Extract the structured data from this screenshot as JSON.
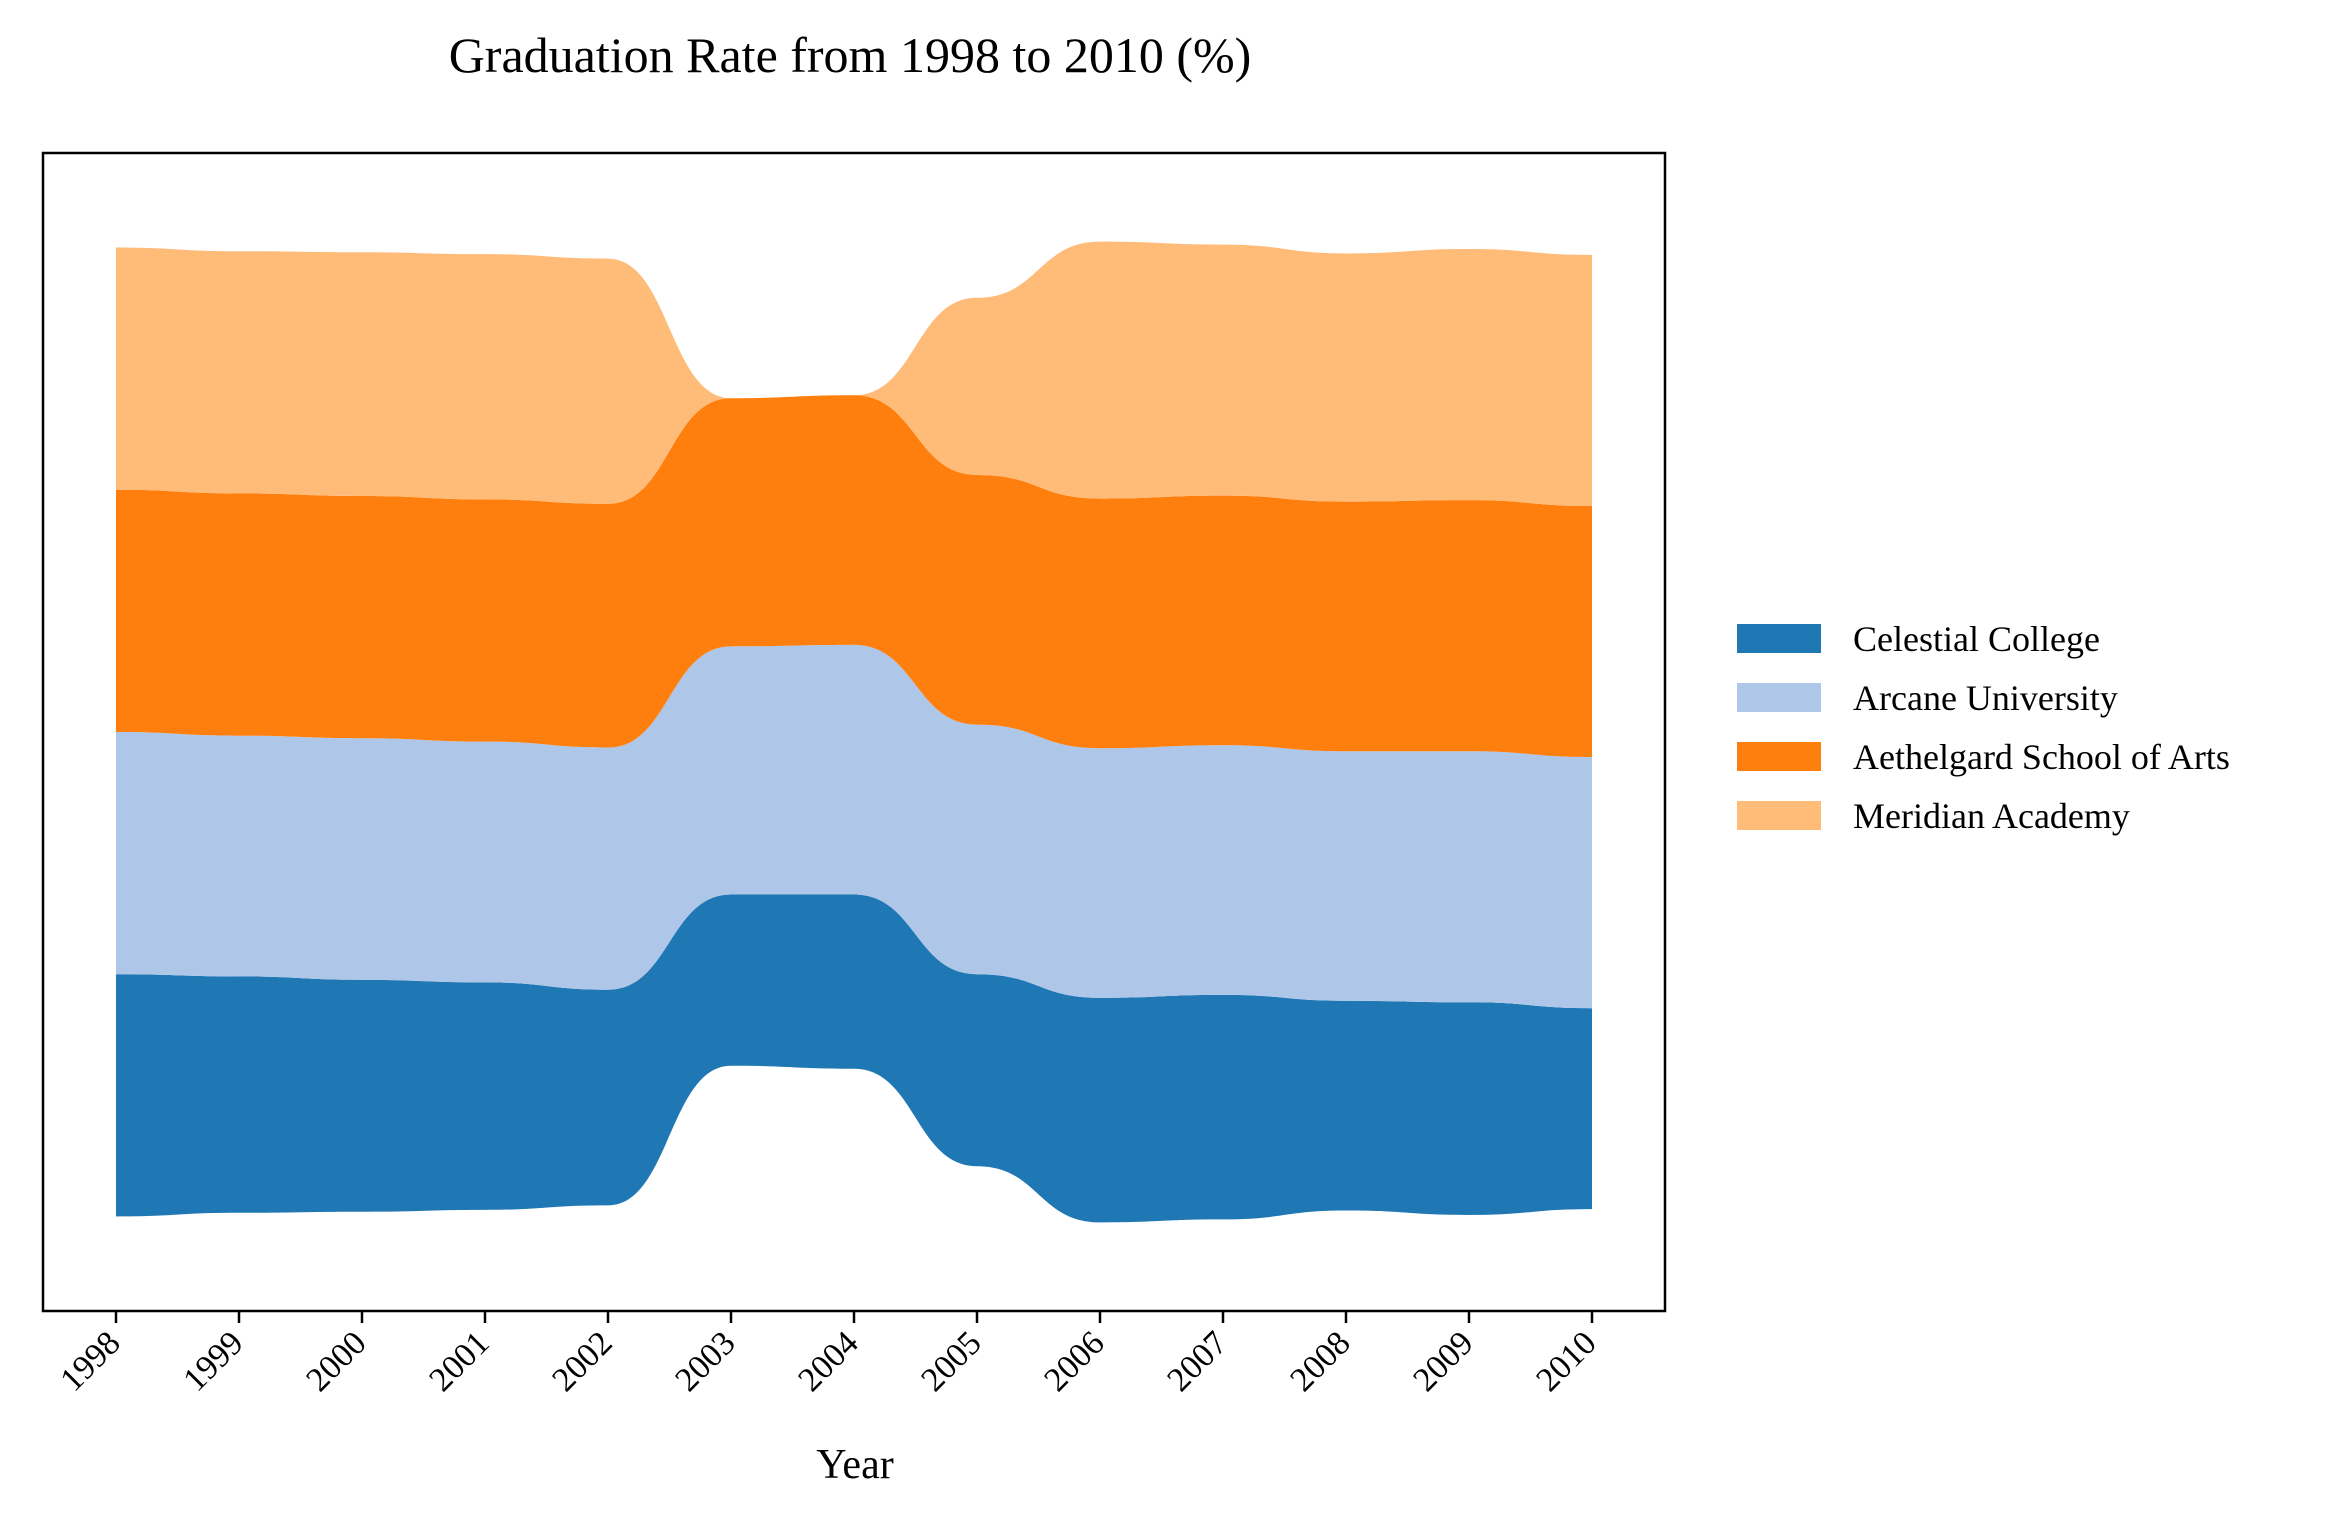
{
  "chart_data": {
    "type": "area",
    "subtype": "streamgraph",
    "title": "Graduation Rate from 1998 to 2010 (%)",
    "xlabel": "Year",
    "ylabel": "",
    "categories": [
      "1998",
      "1999",
      "2000",
      "2001",
      "2002",
      "2003",
      "2004",
      "2005",
      "2006",
      "2007",
      "2008",
      "2009",
      "2010"
    ],
    "legend_position": "right",
    "grid": false,
    "series": [
      {
        "name": "Celestial College",
        "color": "#1f77b4",
        "values": [
          82,
          80,
          78.5,
          77,
          73,
          58,
          59,
          65,
          76,
          76,
          71,
          72,
          68
        ]
      },
      {
        "name": "Arcane University",
        "color": "#aec7e8",
        "values": [
          82,
          81.5,
          81.8,
          81.5,
          82,
          84,
          84.5,
          84.5,
          84.5,
          84.5,
          84.5,
          85,
          85
        ]
      },
      {
        "name": "Aethelgard School of Arts",
        "color": "#ff7f0e",
        "values": [
          82,
          82,
          82,
          82,
          82.5,
          84,
          84.5,
          84.5,
          84.5,
          84.5,
          84.5,
          85,
          85
        ]
      },
      {
        "name": "Meridian Academy",
        "color": "#ffbb78",
        "values": [
          82,
          82,
          82.5,
          83,
          83,
          0,
          0,
          60,
          87,
          85,
          84,
          85,
          85
        ]
      }
    ]
  }
}
